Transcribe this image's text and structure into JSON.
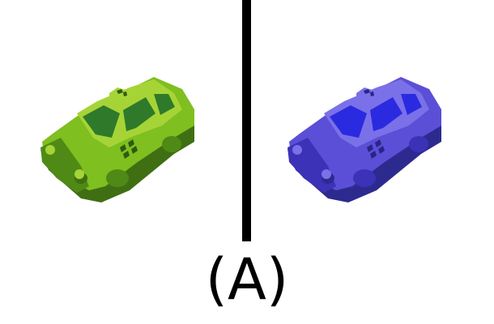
{
  "caption": "(A)",
  "images": [
    {
      "subject": "taxi-car",
      "tint": "green",
      "colors": {
        "body": "#7fbf1f",
        "body_light": "#a6d437",
        "body_dark": "#4f8a16",
        "window": "#2e7a2a",
        "shadow": "#3f6f12",
        "checker": "#2f5a10"
      }
    },
    {
      "subject": "taxi-car",
      "tint": "blue",
      "colors": {
        "body": "#5a4fd6",
        "body_light": "#7a70e8",
        "body_dark": "#3b32b8",
        "window": "#2a2ae0",
        "shadow": "#2d2a8f",
        "checker": "#2a2488"
      }
    }
  ],
  "divider_color": "#000000"
}
